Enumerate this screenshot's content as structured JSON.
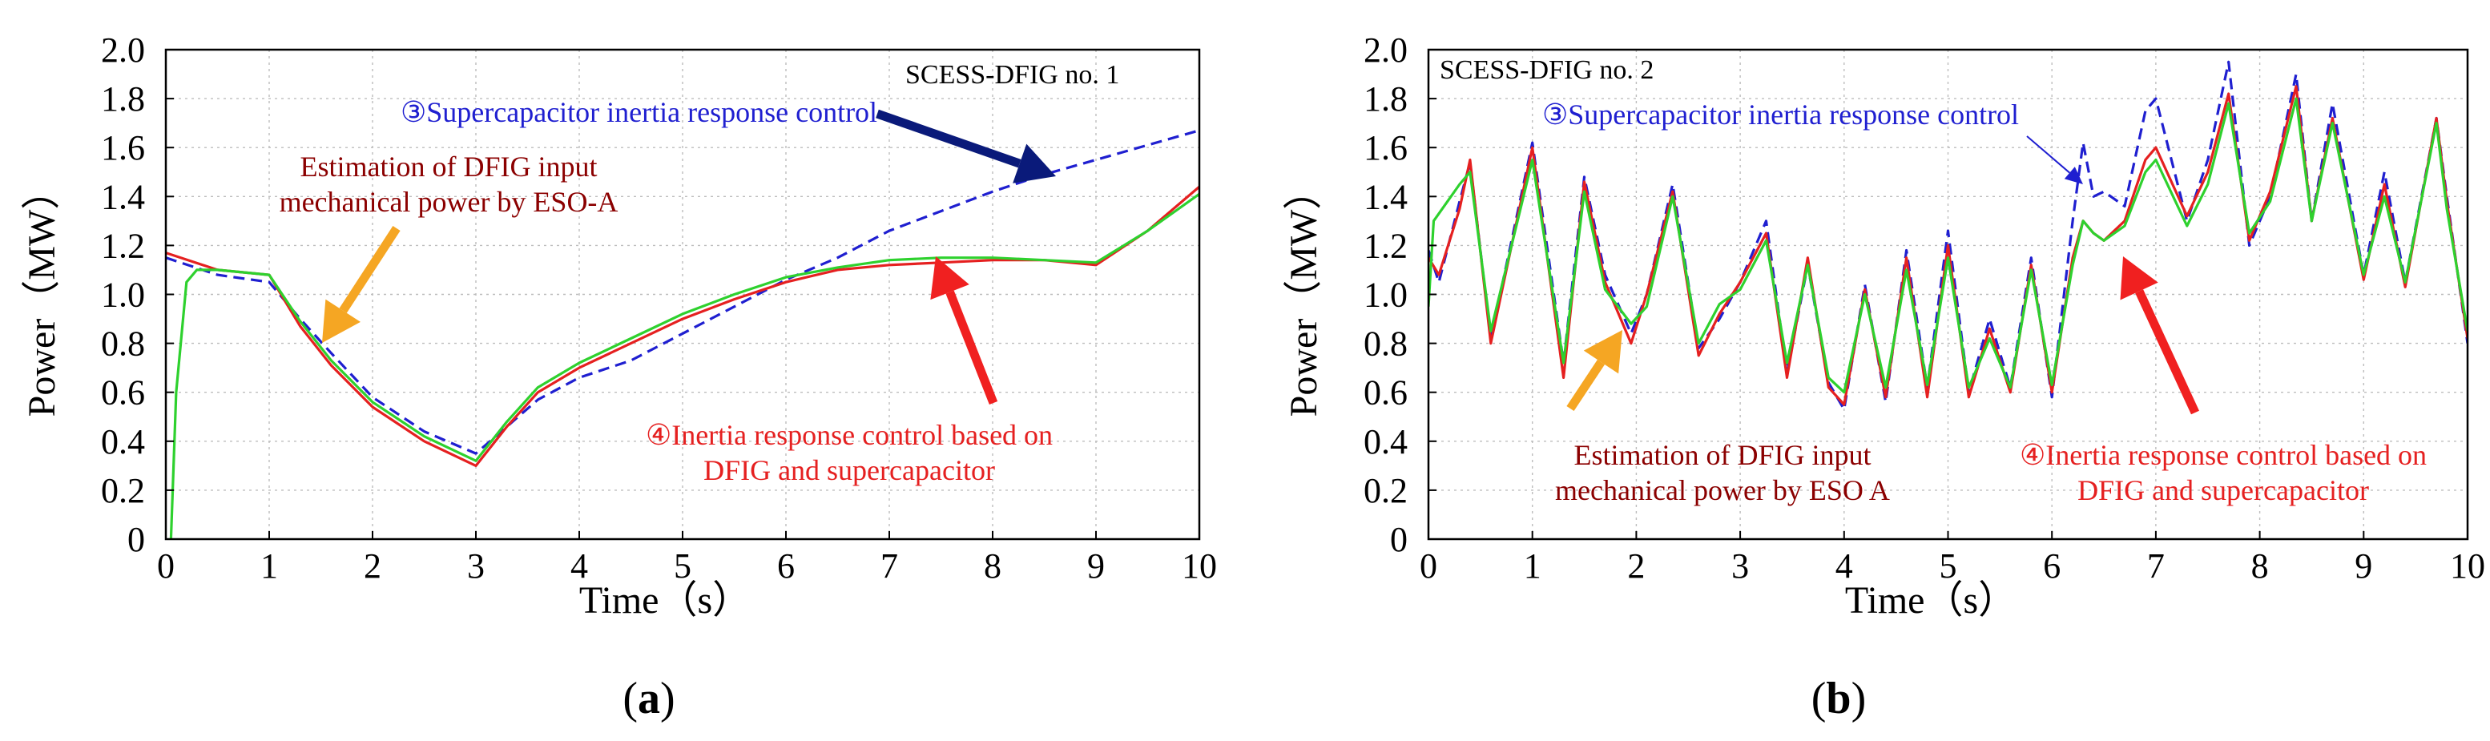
{
  "chart_data": [
    {
      "type": "line",
      "panel_label": "(a)",
      "panel_letter": "a",
      "title": "SCESS-DFIG no. 1",
      "xlabel": "Time（s）",
      "ylabel": "Power（MW）",
      "xlim": [
        0,
        10
      ],
      "ylim": [
        0,
        2.0
      ],
      "xticks": [
        "0",
        "1",
        "2",
        "3",
        "4",
        "5",
        "6",
        "7",
        "8",
        "9",
        "10"
      ],
      "yticks": [
        "0",
        "0.2",
        "0.4",
        "0.6",
        "0.8",
        "1.0",
        "1.2",
        "1.4",
        "1.6",
        "1.8",
        "2.0"
      ],
      "grid": true,
      "series": [
        {
          "name": "③Supercapacitor inertia response control",
          "color": "#1f1fd0",
          "style": "dashed",
          "x": [
            0,
            0.5,
            1.0,
            1.3,
            1.6,
            2.0,
            2.5,
            3.0,
            3.3,
            3.6,
            4.0,
            4.5,
            5.0,
            5.5,
            6.0,
            6.5,
            7.0,
            7.5,
            8.0,
            8.5,
            9.0,
            9.5,
            10.0
          ],
          "y": [
            1.15,
            1.08,
            1.05,
            0.9,
            0.76,
            0.58,
            0.44,
            0.35,
            0.46,
            0.57,
            0.66,
            0.73,
            0.84,
            0.95,
            1.06,
            1.15,
            1.26,
            1.34,
            1.42,
            1.49,
            1.55,
            1.61,
            1.67
          ]
        },
        {
          "name": "④Inertia response control based on DFIG and supercapacitor",
          "color": "#e52020",
          "style": "solid",
          "x": [
            0,
            0.5,
            1.0,
            1.3,
            1.6,
            2.0,
            2.5,
            3.0,
            3.3,
            3.6,
            4.0,
            4.5,
            5.0,
            5.5,
            6.0,
            6.5,
            7.0,
            7.5,
            8.0,
            8.5,
            9.0,
            9.5,
            10.0
          ],
          "y": [
            1.17,
            1.1,
            1.08,
            0.87,
            0.71,
            0.54,
            0.4,
            0.3,
            0.46,
            0.6,
            0.7,
            0.8,
            0.9,
            0.98,
            1.05,
            1.1,
            1.12,
            1.13,
            1.14,
            1.14,
            1.12,
            1.26,
            1.44
          ]
        },
        {
          "name": "Estimation of DFIG input mechanical power by ESO-A",
          "color": "#2ed12e",
          "style": "solid",
          "x": [
            0.05,
            0.1,
            0.2,
            0.3,
            0.5,
            1.0,
            1.3,
            1.6,
            2.0,
            2.5,
            3.0,
            3.3,
            3.6,
            4.0,
            4.5,
            5.0,
            5.5,
            6.0,
            6.5,
            7.0,
            7.5,
            8.0,
            8.5,
            9.0,
            9.5,
            10.0
          ],
          "y": [
            0.0,
            0.6,
            1.05,
            1.1,
            1.1,
            1.08,
            0.89,
            0.73,
            0.56,
            0.42,
            0.32,
            0.48,
            0.62,
            0.72,
            0.82,
            0.92,
            1.0,
            1.07,
            1.11,
            1.14,
            1.15,
            1.15,
            1.14,
            1.13,
            1.26,
            1.41
          ]
        }
      ],
      "annotations": [
        {
          "id": "title",
          "lines": [
            "SCESS-DFIG no. 1"
          ],
          "color": "#000000"
        },
        {
          "id": "supercap",
          "lines": [
            "③Supercapacitor inertia response control"
          ],
          "color": "#1f1fd0"
        },
        {
          "id": "eso",
          "lines": [
            "Estimation of DFIG input",
            "mechanical power by ESO-A"
          ],
          "color": "#8b0000"
        },
        {
          "id": "inertia",
          "lines": [
            "④Inertia response control based on",
            "DFIG and supercapacitor"
          ],
          "color": "#e52020"
        }
      ],
      "arrow_colors": {
        "supercap": "#0a1a7a",
        "eso": "#f5a623",
        "inertia": "#f02020"
      }
    },
    {
      "type": "line",
      "panel_label": "(b)",
      "panel_letter": "b",
      "title": "SCESS-DFIG no. 2",
      "xlabel": "Time（s）",
      "ylabel": "Power（MW）",
      "xlim": [
        0,
        10
      ],
      "ylim": [
        0,
        2.0
      ],
      "xticks": [
        "0",
        "1",
        "2",
        "3",
        "4",
        "5",
        "6",
        "7",
        "8",
        "9",
        "10"
      ],
      "yticks": [
        "0",
        "0.2",
        "0.4",
        "0.6",
        "0.8",
        "1.0",
        "1.2",
        "1.4",
        "1.6",
        "1.8",
        "2.0"
      ],
      "grid": true,
      "series": [
        {
          "name": "③Supercapacitor inertia response control",
          "color": "#1f1fd0",
          "style": "dashed",
          "x": [
            0,
            0.1,
            0.3,
            0.4,
            0.6,
            1.0,
            1.3,
            1.5,
            1.7,
            1.95,
            2.1,
            2.35,
            2.6,
            2.8,
            3.0,
            3.25,
            3.45,
            3.65,
            3.85,
            4.0,
            4.2,
            4.4,
            4.6,
            4.8,
            5.0,
            5.2,
            5.4,
            5.6,
            5.8,
            6.0,
            6.2,
            6.3,
            6.4,
            6.5,
            6.7,
            6.9,
            7.0,
            7.3,
            7.5,
            7.7,
            7.9,
            8.1,
            8.35,
            8.5,
            8.7,
            9.0,
            9.2,
            9.4,
            9.7,
            9.8,
            10.0
          ],
          "y": [
            1.18,
            1.05,
            1.38,
            1.54,
            0.82,
            1.62,
            0.72,
            1.48,
            1.08,
            0.84,
            1.0,
            1.45,
            0.78,
            0.9,
            1.05,
            1.3,
            0.68,
            1.12,
            0.64,
            0.53,
            1.04,
            0.56,
            1.18,
            0.62,
            1.26,
            0.6,
            0.9,
            0.62,
            1.15,
            0.58,
            1.3,
            1.62,
            1.4,
            1.42,
            1.36,
            1.75,
            1.8,
            1.3,
            1.55,
            1.95,
            1.2,
            1.4,
            1.9,
            1.3,
            1.78,
            1.08,
            1.5,
            1.05,
            1.72,
            1.4,
            0.8
          ]
        },
        {
          "name": "④Inertia response control based on DFIG and supercapacitor",
          "color": "#e52020",
          "style": "solid",
          "x": [
            0,
            0.1,
            0.3,
            0.4,
            0.6,
            1.0,
            1.3,
            1.5,
            1.7,
            1.95,
            2.1,
            2.35,
            2.6,
            2.8,
            3.0,
            3.25,
            3.45,
            3.65,
            3.85,
            4.0,
            4.2,
            4.4,
            4.6,
            4.8,
            5.0,
            5.2,
            5.4,
            5.6,
            5.8,
            6.0,
            6.2,
            6.3,
            6.4,
            6.5,
            6.7,
            6.9,
            7.0,
            7.3,
            7.5,
            7.7,
            7.9,
            8.1,
            8.35,
            8.5,
            8.7,
            9.0,
            9.2,
            9.4,
            9.7,
            9.8,
            10.0
          ],
          "y": [
            1.15,
            1.08,
            1.35,
            1.55,
            0.8,
            1.6,
            0.66,
            1.46,
            1.05,
            0.8,
            1.0,
            1.42,
            0.75,
            0.92,
            1.05,
            1.25,
            0.66,
            1.15,
            0.62,
            0.55,
            1.02,
            0.58,
            1.15,
            0.58,
            1.2,
            0.58,
            0.86,
            0.6,
            1.12,
            0.6,
            1.15,
            1.3,
            1.25,
            1.22,
            1.3,
            1.55,
            1.6,
            1.32,
            1.5,
            1.82,
            1.22,
            1.42,
            1.85,
            1.3,
            1.72,
            1.06,
            1.45,
            1.03,
            1.72,
            1.38,
            0.82
          ]
        },
        {
          "name": "Estimation of DFIG input mechanical power by ESO A",
          "color": "#2ed12e",
          "style": "solid",
          "x": [
            0,
            0.05,
            0.3,
            0.4,
            0.6,
            1.0,
            1.3,
            1.5,
            1.7,
            1.95,
            2.1,
            2.35,
            2.6,
            2.8,
            3.0,
            3.25,
            3.45,
            3.65,
            3.85,
            4.0,
            4.2,
            4.4,
            4.6,
            4.8,
            5.0,
            5.2,
            5.4,
            5.6,
            5.8,
            6.0,
            6.2,
            6.3,
            6.4,
            6.5,
            6.7,
            6.9,
            7.0,
            7.3,
            7.5,
            7.7,
            7.9,
            8.1,
            8.35,
            8.5,
            8.7,
            9.0,
            9.2,
            9.4,
            9.7,
            9.8,
            10.0
          ],
          "y": [
            0.95,
            1.3,
            1.45,
            1.5,
            0.85,
            1.55,
            0.72,
            1.42,
            1.02,
            0.88,
            0.95,
            1.4,
            0.8,
            0.96,
            1.02,
            1.22,
            0.72,
            1.12,
            0.66,
            0.6,
            1.0,
            0.62,
            1.1,
            0.63,
            1.15,
            0.62,
            0.82,
            0.62,
            1.1,
            0.63,
            1.12,
            1.3,
            1.25,
            1.22,
            1.28,
            1.5,
            1.55,
            1.28,
            1.45,
            1.78,
            1.25,
            1.38,
            1.8,
            1.3,
            1.7,
            1.08,
            1.4,
            1.05,
            1.7,
            1.35,
            0.85
          ]
        }
      ],
      "annotations": [
        {
          "id": "title",
          "lines": [
            "SCESS-DFIG no. 2"
          ],
          "color": "#000000"
        },
        {
          "id": "supercap",
          "lines": [
            "③Supercapacitor inertia response control"
          ],
          "color": "#1f1fd0"
        },
        {
          "id": "eso",
          "lines": [
            "Estimation of DFIG input",
            "mechanical power by ESO A"
          ],
          "color": "#8b0000"
        },
        {
          "id": "inertia",
          "lines": [
            "④Inertia response control based on",
            "DFIG and supercapacitor"
          ],
          "color": "#e52020"
        }
      ],
      "arrow_colors": {
        "supercap": "#1f1fd0",
        "eso": "#f5a623",
        "inertia": "#f02020"
      }
    }
  ]
}
